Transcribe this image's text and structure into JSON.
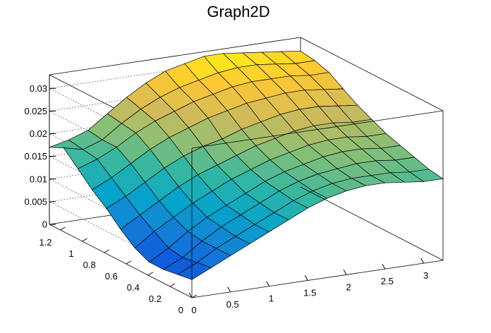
{
  "chart_data": {
    "type": "surface3d",
    "title": "Graph2D",
    "xlabel": "",
    "ylabel": "",
    "zlabel": "",
    "xlim": [
      0,
      3.25
    ],
    "ylim": [
      0,
      1.3
    ],
    "zlim": [
      0,
      0.033
    ],
    "x_ticks": [
      "0",
      "0.5",
      "1",
      "1.5",
      "2",
      "2.5",
      "3"
    ],
    "y_ticks": [
      "0",
      "0.2",
      "0.4",
      "0.6",
      "0.8",
      "1",
      "1.2"
    ],
    "z_ticks": [
      "0",
      "0.005",
      "0.01",
      "0.015",
      "0.02",
      "0.025",
      "0.03"
    ],
    "grid": true,
    "colormap": [
      "#352a87",
      "#0f5cdd",
      "#1481d6",
      "#06a4ca",
      "#2eb7a4",
      "#87bf77",
      "#d1bb59",
      "#fec832",
      "#f9fb0e"
    ],
    "x_grid": [
      0,
      0.25,
      0.5,
      0.75,
      1.0,
      1.25,
      1.5,
      1.75,
      2.0,
      2.25,
      2.5,
      2.75,
      3.0,
      3.25
    ],
    "y_grid": [
      0,
      0.13,
      0.26,
      0.39,
      0.52,
      0.65,
      0.78,
      0.91,
      1.04,
      1.17,
      1.3
    ],
    "z_values": [
      [
        0.004,
        0.006,
        0.008,
        0.01,
        0.012,
        0.014,
        0.016,
        0.0175,
        0.0185,
        0.019,
        0.019,
        0.0185,
        0.018,
        0.018
      ],
      [
        0.0035,
        0.0055,
        0.008,
        0.01,
        0.012,
        0.014,
        0.016,
        0.0175,
        0.0185,
        0.019,
        0.019,
        0.019,
        0.0185,
        0.0185
      ],
      [
        0.003,
        0.005,
        0.008,
        0.0105,
        0.0125,
        0.0145,
        0.0165,
        0.018,
        0.019,
        0.0195,
        0.02,
        0.02,
        0.0195,
        0.0195
      ],
      [
        0.003,
        0.0055,
        0.0085,
        0.011,
        0.013,
        0.015,
        0.017,
        0.0185,
        0.0195,
        0.0205,
        0.021,
        0.021,
        0.0205,
        0.0205
      ],
      [
        0.0045,
        0.0075,
        0.01,
        0.0125,
        0.0145,
        0.0165,
        0.018,
        0.0195,
        0.0205,
        0.0215,
        0.022,
        0.022,
        0.0215,
        0.0215
      ],
      [
        0.007,
        0.0095,
        0.012,
        0.0145,
        0.0165,
        0.018,
        0.0195,
        0.021,
        0.022,
        0.023,
        0.0235,
        0.0235,
        0.023,
        0.023
      ],
      [
        0.01,
        0.012,
        0.0145,
        0.017,
        0.019,
        0.0205,
        0.0215,
        0.023,
        0.024,
        0.025,
        0.0255,
        0.0255,
        0.025,
        0.0245
      ],
      [
        0.0125,
        0.0145,
        0.017,
        0.0195,
        0.0215,
        0.023,
        0.0245,
        0.0255,
        0.0265,
        0.027,
        0.0275,
        0.0275,
        0.027,
        0.0265
      ],
      [
        0.0155,
        0.017,
        0.019,
        0.0215,
        0.0235,
        0.025,
        0.0265,
        0.0275,
        0.0285,
        0.029,
        0.029,
        0.029,
        0.0285,
        0.0285
      ],
      [
        0.0185,
        0.0175,
        0.019,
        0.022,
        0.0245,
        0.0265,
        0.028,
        0.029,
        0.03,
        0.0305,
        0.0305,
        0.03,
        0.0295,
        0.0295
      ],
      [
        0.017,
        0.018,
        0.0195,
        0.0225,
        0.0255,
        0.028,
        0.03,
        0.031,
        0.032,
        0.032,
        0.0315,
        0.031,
        0.0305,
        0.03
      ]
    ]
  }
}
